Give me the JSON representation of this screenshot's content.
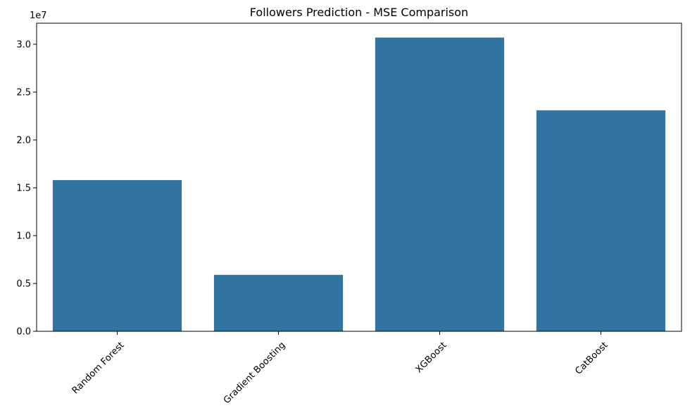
{
  "chart_data": {
    "type": "bar",
    "title": "Followers Prediction - MSE Comparison",
    "xlabel": "",
    "ylabel": "",
    "categories": [
      "Random Forest",
      "Gradient Boosting",
      "XGBoost",
      "CatBoost"
    ],
    "values": [
      15800000,
      5900000,
      30700000,
      23100000
    ],
    "ylim": [
      0,
      32200000
    ],
    "y_ticks": [
      0,
      5000000,
      10000000,
      15000000,
      20000000,
      25000000,
      30000000
    ],
    "y_tick_labels": [
      "0.0",
      "0.5",
      "1.0",
      "1.5",
      "2.0",
      "2.5",
      "3.0"
    ],
    "y_offset_label": "1e7",
    "x_tick_rotation": 45,
    "grid": false,
    "bar_color": "#3274a1"
  }
}
